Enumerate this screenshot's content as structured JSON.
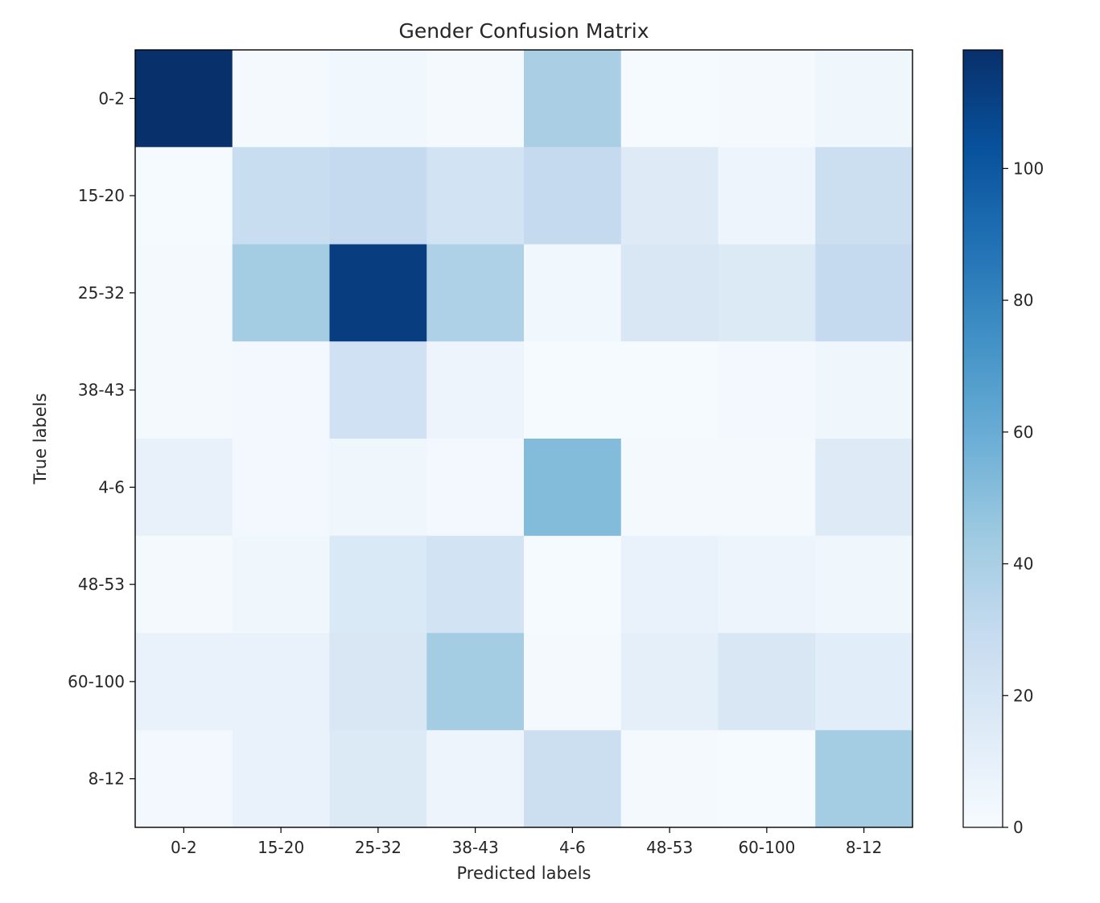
{
  "chart_data": {
    "type": "heatmap",
    "title": "Gender Confusion Matrix",
    "xlabel": "Predicted labels",
    "ylabel": "True labels",
    "x_categories": [
      "0-2",
      "15-20",
      "25-32",
      "38-43",
      "4-6",
      "48-53",
      "60-100",
      "8-12"
    ],
    "y_categories": [
      "0-2",
      "15-20",
      "25-32",
      "38-43",
      "4-6",
      "48-53",
      "60-100",
      "8-12"
    ],
    "values": [
      [
        118,
        2,
        4,
        2,
        40,
        1,
        2,
        5
      ],
      [
        1,
        28,
        30,
        22,
        30,
        15,
        6,
        26
      ],
      [
        2,
        42,
        112,
        38,
        4,
        18,
        16,
        30
      ],
      [
        2,
        3,
        24,
        6,
        1,
        1,
        3,
        5
      ],
      [
        9,
        3,
        5,
        3,
        52,
        2,
        2,
        15
      ],
      [
        2,
        5,
        17,
        22,
        1,
        8,
        6,
        5
      ],
      [
        8,
        8,
        18,
        42,
        2,
        11,
        18,
        13
      ],
      [
        3,
        8,
        16,
        6,
        26,
        2,
        1,
        42
      ]
    ],
    "colormap": "Blues",
    "vmin": 0,
    "vmax": 118,
    "colorbar": {
      "ticks": [
        0,
        20,
        40,
        60,
        80,
        100
      ],
      "tick_labels": [
        "0",
        "20",
        "40",
        "60",
        "80",
        "100"
      ]
    }
  }
}
